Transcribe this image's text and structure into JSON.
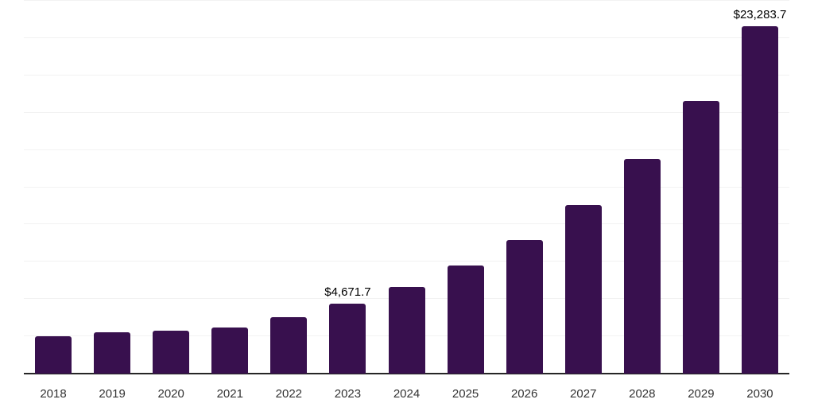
{
  "chart_data": {
    "type": "bar",
    "title": "",
    "xlabel": "",
    "ylabel": "",
    "categories": [
      "2018",
      "2019",
      "2020",
      "2021",
      "2022",
      "2023",
      "2024",
      "2025",
      "2026",
      "2027",
      "2028",
      "2029",
      "2030"
    ],
    "values": [
      2480,
      2760,
      2860,
      3080,
      3760,
      4671.7,
      5800,
      7250,
      8980,
      11280,
      14410,
      18300,
      23283.7
    ],
    "value_labels": [
      "",
      "",
      "",
      "",
      "",
      "$4,671.7",
      "",
      "",
      "",
      "",
      "",
      "",
      "$23,283.7"
    ],
    "ylim": [
      0,
      25000
    ],
    "gridline_step": 2500,
    "grid": "horizontal",
    "legend_position": "none",
    "colors": {
      "bar": "#38104e",
      "axis_line": "#262626",
      "gridline": "#f2f2f2",
      "value_label": "#000000",
      "tick_label": "#333333",
      "background": "#ffffff"
    }
  }
}
